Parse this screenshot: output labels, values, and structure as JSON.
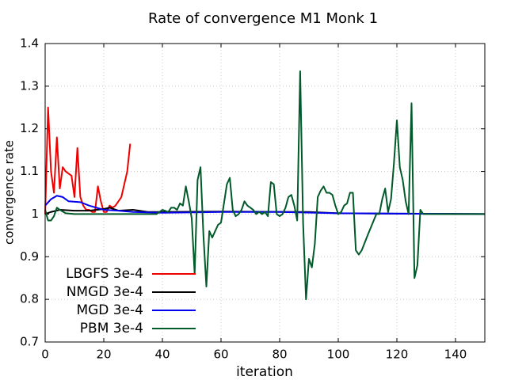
{
  "chart_data": {
    "type": "line",
    "title": "Rate of convergence M1 Monk 1",
    "xlabel": "iteration",
    "ylabel": "convergence rate",
    "xlim": [
      0,
      150
    ],
    "ylim": [
      0.7,
      1.4
    ],
    "xticks": [
      0,
      20,
      40,
      60,
      80,
      100,
      120,
      140
    ],
    "yticks": [
      0.7,
      0.8,
      0.9,
      1,
      1.1,
      1.2,
      1.3,
      1.4
    ],
    "grid": true,
    "legend": "lower left",
    "series": [
      {
        "name": "LBGFS 3e-4",
        "color": "#ee0000",
        "x": [
          0,
          1,
          2,
          3,
          4,
          5,
          6,
          7,
          8,
          9,
          10,
          11,
          12,
          13,
          14,
          15,
          16,
          17,
          18,
          19,
          20,
          21,
          22,
          23,
          24,
          25,
          26,
          27,
          28,
          29
        ],
        "values": [
          1.0,
          1.25,
          1.1,
          1.05,
          1.18,
          1.06,
          1.11,
          1.1,
          1.095,
          1.09,
          1.04,
          1.155,
          1.04,
          1.02,
          1.01,
          1.01,
          1.005,
          1.005,
          1.065,
          1.03,
          1.005,
          1.005,
          1.02,
          1.015,
          1.02,
          1.03,
          1.04,
          1.07,
          1.1,
          1.165
        ]
      },
      {
        "name": "NMGD 3e-4",
        "color": "#000000",
        "x": [
          0,
          2,
          5,
          10,
          15,
          20,
          22,
          25,
          30,
          35,
          40,
          60,
          90,
          100,
          120,
          150
        ],
        "values": [
          1.0,
          1.005,
          1.01,
          1.008,
          1.008,
          1.012,
          1.015,
          1.008,
          1.01,
          1.005,
          1.005,
          1.006,
          1.005,
          1.002,
          1.001,
          1.0
        ]
      },
      {
        "name": "MGD 3e-4",
        "color": "#0000ee",
        "x": [
          0,
          2,
          4,
          6,
          8,
          12,
          15,
          20,
          25,
          30,
          40,
          60,
          80,
          100,
          150
        ],
        "values": [
          1.02,
          1.035,
          1.043,
          1.04,
          1.03,
          1.028,
          1.02,
          1.01,
          1.008,
          1.005,
          1.003,
          1.005,
          1.005,
          1.002,
          1.0
        ]
      },
      {
        "name": "PBM 3e-4",
        "color": "#005a2a",
        "x": [
          0,
          1,
          2,
          3,
          4,
          5,
          7,
          10,
          20,
          38,
          40,
          42,
          43,
          44,
          45,
          46,
          47,
          48,
          49,
          50,
          51,
          52,
          53,
          54,
          55,
          56,
          57,
          58,
          59,
          60,
          61,
          62,
          63,
          64,
          65,
          66,
          67,
          68,
          69,
          70,
          71,
          72,
          73,
          74,
          75,
          76,
          77,
          78,
          79,
          80,
          81,
          82,
          83,
          84,
          85,
          86,
          87,
          88,
          89,
          90,
          91,
          92,
          93,
          94,
          95,
          96,
          97,
          98,
          99,
          100,
          101,
          102,
          103,
          104,
          105,
          106,
          107,
          108,
          110,
          113,
          114,
          115,
          116,
          117,
          118,
          119,
          120,
          121,
          122,
          123,
          124,
          125,
          126,
          127,
          128,
          129,
          130,
          140,
          150
        ],
        "values": [
          1.01,
          0.985,
          0.985,
          0.995,
          1.015,
          1.01,
          1.002,
          1.0,
          1.0,
          1.0,
          1.01,
          1.005,
          1.015,
          1.015,
          1.01,
          1.025,
          1.02,
          1.065,
          1.03,
          0.99,
          0.86,
          1.08,
          1.11,
          0.95,
          0.83,
          0.96,
          0.945,
          0.96,
          0.975,
          0.98,
          1.025,
          1.07,
          1.085,
          1.01,
          0.995,
          1.0,
          1.01,
          1.03,
          1.02,
          1.015,
          1.01,
          1.0,
          1.005,
          1.0,
          1.005,
          0.995,
          1.075,
          1.07,
          1.0,
          0.995,
          1.0,
          1.015,
          1.04,
          1.045,
          1.02,
          0.985,
          1.335,
          0.98,
          0.8,
          0.895,
          0.875,
          0.93,
          1.04,
          1.055,
          1.065,
          1.05,
          1.05,
          1.045,
          1.02,
          1.0,
          1.005,
          1.02,
          1.025,
          1.05,
          1.05,
          0.915,
          0.905,
          0.915,
          0.95,
          1.0,
          1.0,
          1.035,
          1.06,
          1.005,
          1.035,
          1.12,
          1.22,
          1.11,
          1.08,
          1.03,
          1.0,
          1.26,
          0.85,
          0.88,
          1.01,
          1.0,
          1.0,
          1.0,
          1.0
        ]
      }
    ]
  }
}
